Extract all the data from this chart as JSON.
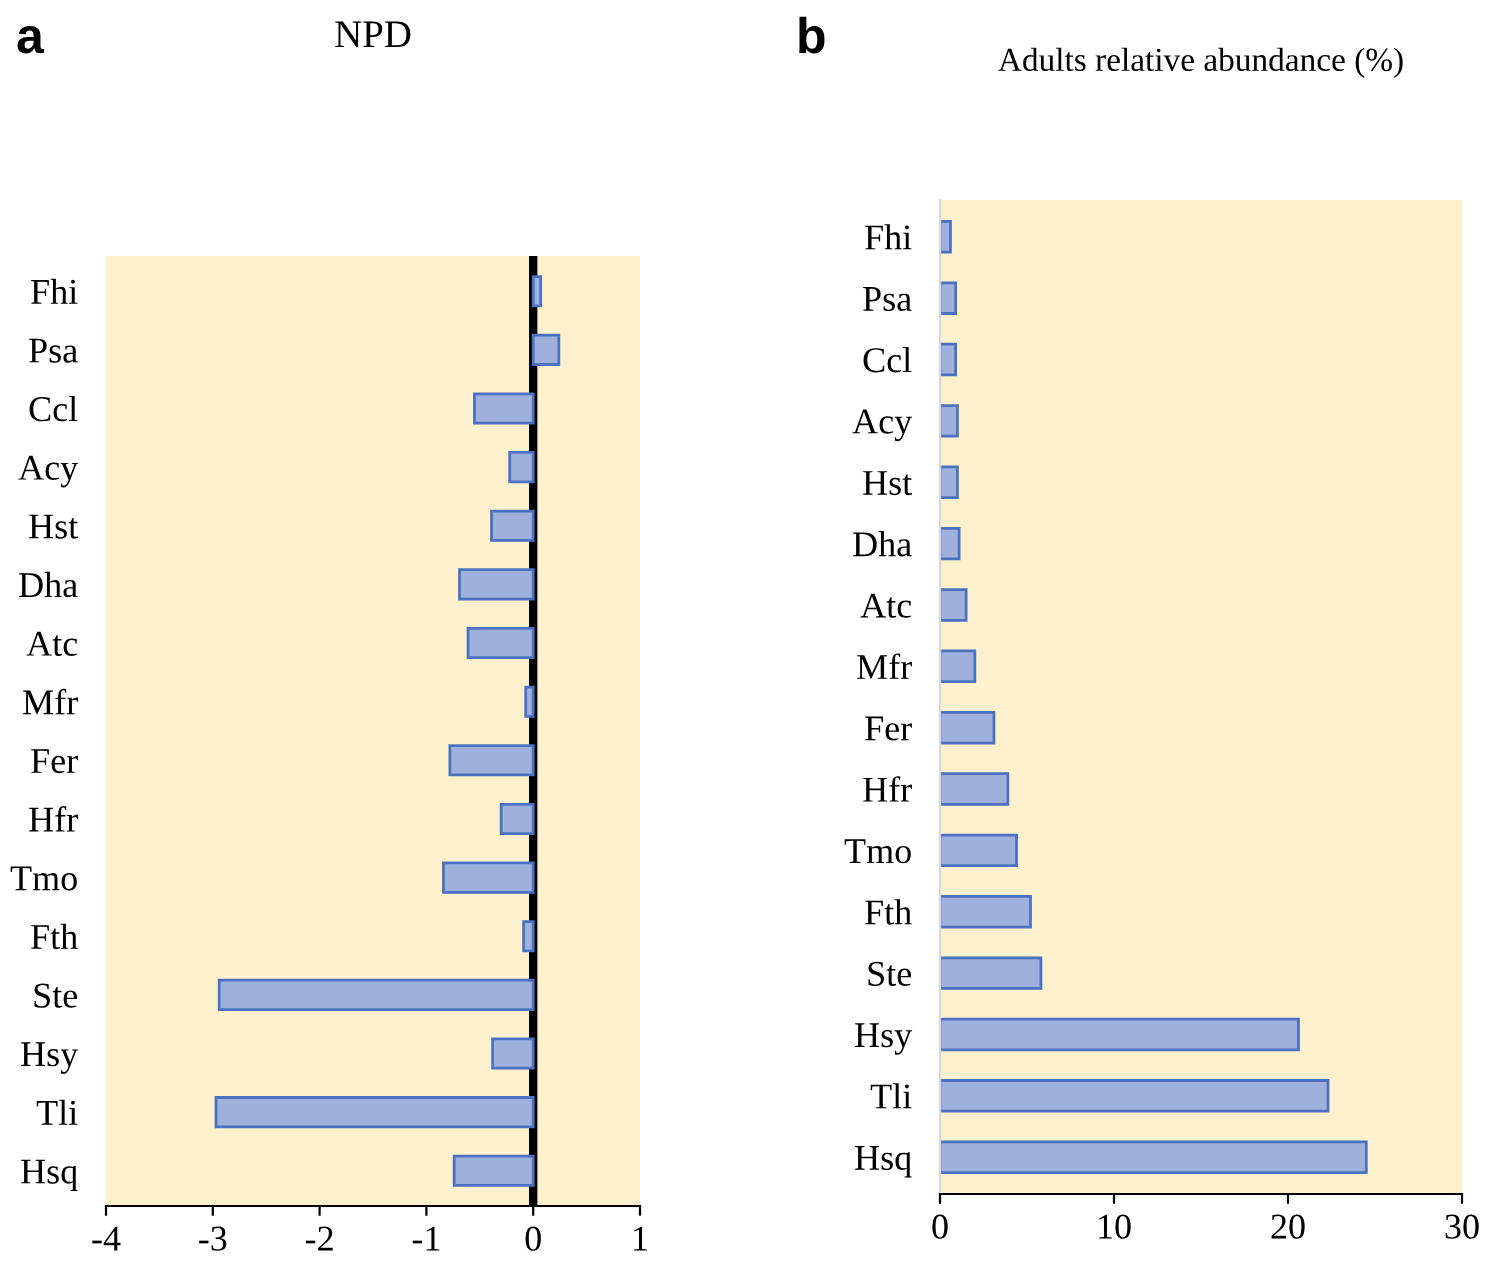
{
  "chart_data": [
    {
      "type": "bar",
      "orientation": "horizontal",
      "title": "NPD",
      "annotations": [
        "a"
      ],
      "categories": [
        "Fhi",
        "Psa",
        "Ccl",
        "Acy",
        "Hst",
        "Dha",
        "Atc",
        "Mfr",
        "Fer",
        "Hfr",
        "Tmo",
        "Fth",
        "Ste",
        "Hsy",
        "Tli",
        "Hsq"
      ],
      "values": [
        0.07,
        0.24,
        -0.55,
        -0.22,
        -0.39,
        -0.69,
        -0.61,
        -0.07,
        -0.78,
        -0.3,
        -0.84,
        -0.09,
        -2.94,
        -0.38,
        -2.97,
        -0.74
      ],
      "color": "#9fb0dc",
      "xlim": [
        -4,
        1
      ],
      "xticks": [
        -4,
        -3,
        -2,
        -1,
        0,
        1
      ],
      "grid": false,
      "ref_lines": [
        {
          "axis": "x",
          "value": 0,
          "color": "#000000"
        }
      ]
    },
    {
      "type": "bar",
      "orientation": "horizontal",
      "title": "Adults relative abundance (%)",
      "annotations": [
        "b"
      ],
      "categories": [
        "Fhi",
        "Psa",
        "Ccl",
        "Acy",
        "Hst",
        "Dha",
        "Atc",
        "Mfr",
        "Fer",
        "Hfr",
        "Tmo",
        "Fth",
        "Ste",
        "Hsy",
        "Tli",
        "Hsq"
      ],
      "values": [
        0.6,
        0.9,
        0.9,
        1.0,
        1.0,
        1.1,
        1.5,
        2.0,
        3.1,
        3.9,
        4.4,
        5.2,
        5.8,
        20.6,
        22.3,
        24.5
      ],
      "color": "#9fb0dc",
      "xlim": [
        0,
        30
      ],
      "xticks": [
        0,
        10,
        20,
        30
      ],
      "grid": false
    }
  ]
}
